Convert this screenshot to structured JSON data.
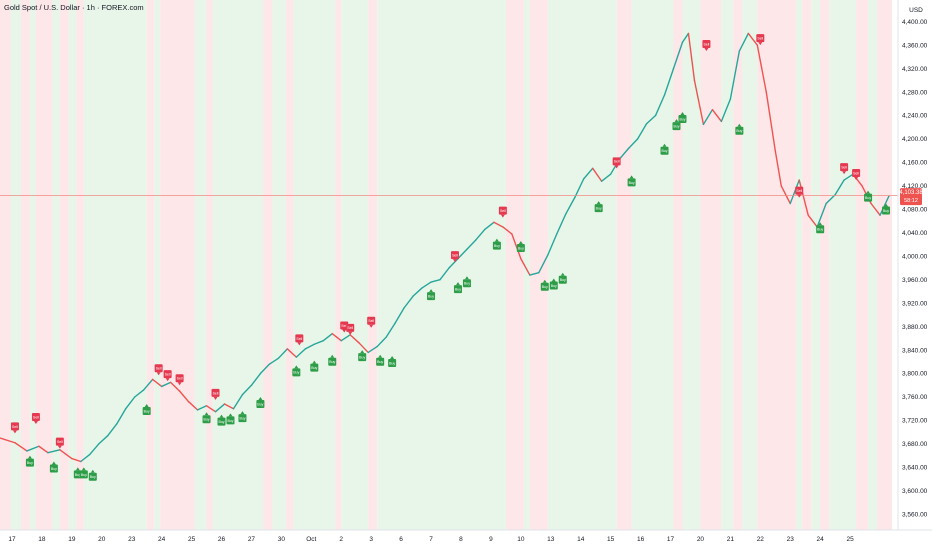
{
  "header": {
    "title": "Gold Spot / U.S. Dollar · 1h · FOREX.com",
    "currency": "USD"
  },
  "price_tag": {
    "value": "4,103.38",
    "countdown": "58:12"
  },
  "colors": {
    "up": "#26a69a",
    "down": "#ef5350",
    "buy_zone": "#e8f5e9",
    "sell_zone": "#fde7e9",
    "buy_signal": "#2e9d48",
    "sell_signal": "#e53950",
    "price_line": "#f28b82"
  },
  "chart_data": {
    "type": "line",
    "title": "",
    "xlabel": "",
    "ylabel": "USD",
    "ylim": [
      3540,
      4420
    ],
    "yticks": [
      3560,
      3600,
      3640,
      3680,
      3720,
      3760,
      3800,
      3840,
      3880,
      3920,
      3960,
      4000,
      4040,
      4080,
      4120,
      4160,
      4200,
      4240,
      4280,
      4320,
      4360,
      4400
    ],
    "ytick_labels": [
      "3,560.00",
      "3,600.00",
      "3,640.00",
      "3,680.00",
      "3,720.00",
      "3,760.00",
      "3,800.00",
      "3,840.00",
      "3,880.00",
      "3,920.00",
      "3,960.00",
      "4,000.00",
      "4,040.00",
      "4,080.00",
      "4,120.00",
      "4,160.00",
      "4,200.00",
      "4,240.00",
      "4,280.00",
      "4,320.00",
      "4,360.00",
      "4,400.00"
    ],
    "xlim": [
      0,
      30
    ],
    "xticks": [
      {
        "x": 0.4,
        "label": "17"
      },
      {
        "x": 1.4,
        "label": "18"
      },
      {
        "x": 2.4,
        "label": "19"
      },
      {
        "x": 3.4,
        "label": "20"
      },
      {
        "x": 4.4,
        "label": "23"
      },
      {
        "x": 5.4,
        "label": "24"
      },
      {
        "x": 6.4,
        "label": "25"
      },
      {
        "x": 7.4,
        "label": "26"
      },
      {
        "x": 8.4,
        "label": "27"
      },
      {
        "x": 9.4,
        "label": "30"
      },
      {
        "x": 10.4,
        "label": "Oct"
      },
      {
        "x": 11.4,
        "label": "2"
      },
      {
        "x": 12.4,
        "label": "3"
      },
      {
        "x": 13.4,
        "label": "6"
      },
      {
        "x": 14.4,
        "label": "7"
      },
      {
        "x": 15.4,
        "label": "8"
      },
      {
        "x": 16.4,
        "label": "9"
      },
      {
        "x": 17.4,
        "label": "10"
      },
      {
        "x": 18.4,
        "label": "13"
      },
      {
        "x": 19.4,
        "label": "14"
      },
      {
        "x": 20.4,
        "label": "15"
      },
      {
        "x": 21.4,
        "label": "16"
      },
      {
        "x": 22.4,
        "label": "17"
      },
      {
        "x": 23.4,
        "label": "20"
      },
      {
        "x": 24.4,
        "label": "21"
      },
      {
        "x": 25.4,
        "label": "22"
      },
      {
        "x": 26.4,
        "label": "23"
      },
      {
        "x": 27.4,
        "label": "24"
      },
      {
        "x": 28.4,
        "label": "25"
      }
    ],
    "series": [
      {
        "values": [
          [
            0.0,
            3690
          ],
          [
            0.5,
            3682
          ],
          [
            0.9,
            3668
          ],
          [
            1.3,
            3676
          ],
          [
            1.6,
            3665
          ],
          [
            2.0,
            3670
          ],
          [
            2.4,
            3655
          ],
          [
            2.7,
            3650
          ],
          [
            3.0,
            3662
          ],
          [
            3.3,
            3680
          ],
          [
            3.6,
            3694
          ],
          [
            3.9,
            3714
          ],
          [
            4.2,
            3740
          ],
          [
            4.5,
            3760
          ],
          [
            4.8,
            3772
          ],
          [
            5.1,
            3790
          ],
          [
            5.4,
            3778
          ],
          [
            5.7,
            3785
          ],
          [
            6.0,
            3770
          ],
          [
            6.3,
            3752
          ],
          [
            6.6,
            3738
          ],
          [
            6.9,
            3745
          ],
          [
            7.2,
            3735
          ],
          [
            7.5,
            3748
          ],
          [
            7.8,
            3740
          ],
          [
            8.1,
            3764
          ],
          [
            8.4,
            3780
          ],
          [
            8.7,
            3800
          ],
          [
            9.0,
            3816
          ],
          [
            9.3,
            3826
          ],
          [
            9.6,
            3842
          ],
          [
            9.9,
            3828
          ],
          [
            10.2,
            3842
          ],
          [
            10.5,
            3850
          ],
          [
            10.8,
            3856
          ],
          [
            11.1,
            3868
          ],
          [
            11.4,
            3856
          ],
          [
            11.7,
            3866
          ],
          [
            12.0,
            3852
          ],
          [
            12.3,
            3836
          ],
          [
            12.6,
            3846
          ],
          [
            12.9,
            3862
          ],
          [
            13.2,
            3886
          ],
          [
            13.5,
            3912
          ],
          [
            13.8,
            3932
          ],
          [
            14.1,
            3946
          ],
          [
            14.4,
            3956
          ],
          [
            14.7,
            3960
          ],
          [
            15.0,
            3980
          ],
          [
            15.3,
            3996
          ],
          [
            15.6,
            4012
          ],
          [
            15.9,
            4028
          ],
          [
            16.2,
            4046
          ],
          [
            16.5,
            4058
          ],
          [
            16.8,
            4050
          ],
          [
            17.1,
            4038
          ],
          [
            17.4,
            3996
          ],
          [
            17.7,
            3968
          ],
          [
            18.0,
            3972
          ],
          [
            18.3,
            4002
          ],
          [
            18.6,
            4038
          ],
          [
            18.9,
            4072
          ],
          [
            19.2,
            4100
          ],
          [
            19.5,
            4132
          ],
          [
            19.8,
            4150
          ],
          [
            20.1,
            4128
          ],
          [
            20.4,
            4140
          ],
          [
            20.7,
            4166
          ],
          [
            21.0,
            4184
          ],
          [
            21.3,
            4200
          ],
          [
            21.6,
            4226
          ],
          [
            21.9,
            4240
          ],
          [
            22.2,
            4275
          ],
          [
            22.5,
            4320
          ],
          [
            22.8,
            4365
          ],
          [
            23.0,
            4380
          ],
          [
            23.2,
            4300
          ],
          [
            23.5,
            4225
          ],
          [
            23.8,
            4250
          ],
          [
            24.1,
            4230
          ],
          [
            24.4,
            4268
          ],
          [
            24.7,
            4350
          ],
          [
            25.0,
            4380
          ],
          [
            25.3,
            4360
          ],
          [
            25.6,
            4280
          ],
          [
            25.9,
            4180
          ],
          [
            26.1,
            4120
          ],
          [
            26.4,
            4090
          ],
          [
            26.7,
            4130
          ],
          [
            27.0,
            4070
          ],
          [
            27.3,
            4050
          ],
          [
            27.6,
            4090
          ],
          [
            27.9,
            4105
          ],
          [
            28.2,
            4130
          ],
          [
            28.5,
            4140
          ],
          [
            28.8,
            4120
          ],
          [
            29.1,
            4090
          ],
          [
            29.4,
            4070
          ],
          [
            29.7,
            4103
          ]
        ]
      }
    ],
    "signals": [
      {
        "type": "sell",
        "label": "Sell",
        "x": 0.5,
        "y": 3698
      },
      {
        "type": "sell",
        "label": "Sell",
        "x": 1.2,
        "y": 3714
      },
      {
        "type": "buy",
        "label": "Buy",
        "x": 1.0,
        "y": 3660
      },
      {
        "type": "buy",
        "label": "Buy",
        "x": 1.8,
        "y": 3650
      },
      {
        "type": "sell",
        "label": "Sell",
        "x": 2.0,
        "y": 3672
      },
      {
        "type": "buy",
        "label": "Buy",
        "x": 2.6,
        "y": 3640
      },
      {
        "type": "buy",
        "label": "Buy",
        "x": 2.8,
        "y": 3640
      },
      {
        "type": "buy",
        "label": "Buy",
        "x": 3.1,
        "y": 3636
      },
      {
        "type": "buy",
        "label": "Buy",
        "x": 4.9,
        "y": 3748
      },
      {
        "type": "sell",
        "label": "Sell",
        "x": 5.3,
        "y": 3797
      },
      {
        "type": "sell",
        "label": "Sell",
        "x": 5.6,
        "y": 3787
      },
      {
        "type": "sell",
        "label": "Sell",
        "x": 6.0,
        "y": 3780
      },
      {
        "type": "sell",
        "label": "Sell",
        "x": 7.2,
        "y": 3755
      },
      {
        "type": "buy",
        "label": "Buy",
        "x": 6.9,
        "y": 3734
      },
      {
        "type": "buy",
        "label": "Buy",
        "x": 7.4,
        "y": 3730
      },
      {
        "type": "buy",
        "label": "Buy",
        "x": 7.7,
        "y": 3732
      },
      {
        "type": "buy",
        "label": "Buy",
        "x": 8.1,
        "y": 3736
      },
      {
        "type": "buy",
        "label": "Buy",
        "x": 8.7,
        "y": 3760
      },
      {
        "type": "sell",
        "label": "Sell",
        "x": 10.0,
        "y": 3848
      },
      {
        "type": "buy",
        "label": "Buy",
        "x": 9.9,
        "y": 3814
      },
      {
        "type": "buy",
        "label": "Buy",
        "x": 10.5,
        "y": 3822
      },
      {
        "type": "buy",
        "label": "Buy",
        "x": 11.1,
        "y": 3832
      },
      {
        "type": "sell",
        "label": "Sell",
        "x": 11.5,
        "y": 3870
      },
      {
        "type": "sell",
        "label": "Sell",
        "x": 11.7,
        "y": 3866
      },
      {
        "type": "buy",
        "label": "Buy",
        "x": 12.1,
        "y": 3840
      },
      {
        "type": "sell",
        "label": "Sell",
        "x": 12.4,
        "y": 3878
      },
      {
        "type": "buy",
        "label": "Buy",
        "x": 12.7,
        "y": 3832
      },
      {
        "type": "buy",
        "label": "Buy",
        "x": 13.1,
        "y": 3830
      },
      {
        "type": "buy",
        "label": "Buy",
        "x": 14.4,
        "y": 3944
      },
      {
        "type": "sell",
        "label": "Sell",
        "x": 15.2,
        "y": 3990
      },
      {
        "type": "buy",
        "label": "Buy",
        "x": 15.3,
        "y": 3956
      },
      {
        "type": "buy",
        "label": "Buy",
        "x": 15.6,
        "y": 3966
      },
      {
        "type": "buy",
        "label": "Buy",
        "x": 16.6,
        "y": 4030
      },
      {
        "type": "sell",
        "label": "Sell",
        "x": 16.8,
        "y": 4066
      },
      {
        "type": "buy",
        "label": "Buy",
        "x": 17.4,
        "y": 4026
      },
      {
        "type": "buy",
        "label": "Buy",
        "x": 18.2,
        "y": 3960
      },
      {
        "type": "buy",
        "label": "Buy",
        "x": 18.5,
        "y": 3962
      },
      {
        "type": "buy",
        "label": "Buy",
        "x": 18.8,
        "y": 3972
      },
      {
        "type": "buy",
        "label": "Buy",
        "x": 20.0,
        "y": 4094
      },
      {
        "type": "sell",
        "label": "Sell",
        "x": 20.6,
        "y": 4150
      },
      {
        "type": "buy",
        "label": "Buy",
        "x": 21.1,
        "y": 4138
      },
      {
        "type": "buy",
        "label": "Buy",
        "x": 22.2,
        "y": 4192
      },
      {
        "type": "buy",
        "label": "Buy",
        "x": 22.6,
        "y": 4234
      },
      {
        "type": "buy",
        "label": "Buy",
        "x": 22.8,
        "y": 4246
      },
      {
        "type": "sell",
        "label": "Sell",
        "x": 23.6,
        "y": 4350
      },
      {
        "type": "buy",
        "label": "Buy",
        "x": 24.7,
        "y": 4226
      },
      {
        "type": "sell",
        "label": "Sell",
        "x": 25.4,
        "y": 4360
      },
      {
        "type": "sell",
        "label": "Sell",
        "x": 26.7,
        "y": 4100
      },
      {
        "type": "buy",
        "label": "Buy",
        "x": 27.4,
        "y": 4058
      },
      {
        "type": "sell",
        "label": "Sell",
        "x": 28.2,
        "y": 4140
      },
      {
        "type": "sell",
        "label": "Sell",
        "x": 28.6,
        "y": 4130
      },
      {
        "type": "buy",
        "label": "Buy",
        "x": 29.0,
        "y": 4112
      },
      {
        "type": "buy",
        "label": "Buy",
        "x": 29.6,
        "y": 4090
      }
    ],
    "zones": [
      {
        "type": "sell",
        "x0": 0.0,
        "x1": 0.35
      },
      {
        "type": "buy",
        "x0": 0.35,
        "x1": 0.7
      },
      {
        "type": "sell",
        "x0": 0.7,
        "x1": 1.0
      },
      {
        "type": "buy",
        "x0": 1.0,
        "x1": 1.2
      },
      {
        "type": "sell",
        "x0": 1.2,
        "x1": 1.75
      },
      {
        "type": "buy",
        "x0": 1.75,
        "x1": 2.0
      },
      {
        "type": "sell",
        "x0": 2.0,
        "x1": 2.3
      },
      {
        "type": "buy",
        "x0": 2.3,
        "x1": 2.55
      },
      {
        "type": "sell",
        "x0": 2.55,
        "x1": 2.8
      },
      {
        "type": "buy",
        "x0": 2.8,
        "x1": 4.9
      },
      {
        "type": "sell",
        "x0": 4.9,
        "x1": 5.15
      },
      {
        "type": "buy",
        "x0": 5.15,
        "x1": 5.35
      },
      {
        "type": "sell",
        "x0": 5.35,
        "x1": 6.5
      },
      {
        "type": "buy",
        "x0": 6.5,
        "x1": 6.9
      },
      {
        "type": "sell",
        "x0": 6.9,
        "x1": 7.1
      },
      {
        "type": "buy",
        "x0": 7.1,
        "x1": 8.8
      },
      {
        "type": "sell",
        "x0": 8.8,
        "x1": 9.1
      },
      {
        "type": "buy",
        "x0": 9.1,
        "x1": 9.55
      },
      {
        "type": "sell",
        "x0": 9.55,
        "x1": 9.8
      },
      {
        "type": "buy",
        "x0": 9.8,
        "x1": 11.2
      },
      {
        "type": "sell",
        "x0": 11.2,
        "x1": 11.4
      },
      {
        "type": "buy",
        "x0": 11.4,
        "x1": 12.3
      },
      {
        "type": "sell",
        "x0": 12.3,
        "x1": 12.6
      },
      {
        "type": "buy",
        "x0": 12.6,
        "x1": 16.9
      },
      {
        "type": "sell",
        "x0": 16.9,
        "x1": 17.5
      },
      {
        "type": "buy",
        "x0": 17.5,
        "x1": 17.7
      },
      {
        "type": "sell",
        "x0": 17.7,
        "x1": 18.3
      },
      {
        "type": "buy",
        "x0": 18.3,
        "x1": 20.6
      },
      {
        "type": "sell",
        "x0": 20.6,
        "x1": 21.1
      },
      {
        "type": "buy",
        "x0": 21.1,
        "x1": 22.5
      },
      {
        "type": "sell",
        "x0": 22.5,
        "x1": 22.8
      },
      {
        "type": "buy",
        "x0": 22.8,
        "x1": 23.4
      },
      {
        "type": "sell",
        "x0": 23.4,
        "x1": 24.1
      },
      {
        "type": "buy",
        "x0": 24.1,
        "x1": 24.5
      },
      {
        "type": "sell",
        "x0": 24.5,
        "x1": 24.8
      },
      {
        "type": "buy",
        "x0": 24.8,
        "x1": 25.3
      },
      {
        "type": "sell",
        "x0": 25.3,
        "x1": 26.6
      },
      {
        "type": "buy",
        "x0": 26.6,
        "x1": 26.8
      },
      {
        "type": "sell",
        "x0": 26.8,
        "x1": 27.1
      },
      {
        "type": "buy",
        "x0": 27.1,
        "x1": 27.4
      },
      {
        "type": "sell",
        "x0": 27.4,
        "x1": 27.7
      },
      {
        "type": "buy",
        "x0": 27.7,
        "x1": 28.6
      },
      {
        "type": "sell",
        "x0": 28.6,
        "x1": 29.0
      },
      {
        "type": "buy",
        "x0": 29.0,
        "x1": 29.3
      },
      {
        "type": "sell",
        "x0": 29.3,
        "x1": 29.8
      }
    ],
    "last_price": 4103.38,
    "grid": false,
    "legend": "none"
  }
}
